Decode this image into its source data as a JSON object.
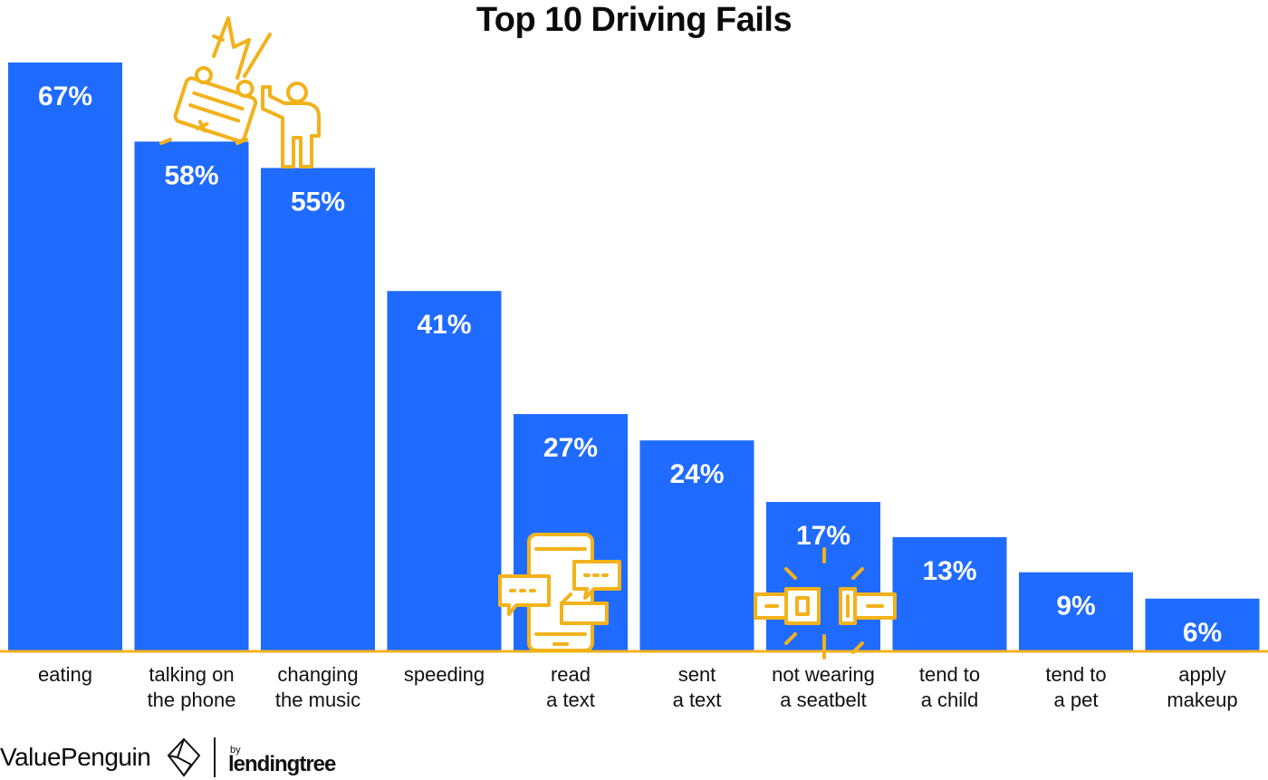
{
  "chart_data": {
    "type": "bar",
    "title": "Top 10 Driving Fails",
    "xlabel": "",
    "ylabel": "",
    "ylim": [
      0,
      67
    ],
    "grid": false,
    "legend": "none",
    "categories": [
      [
        "eating"
      ],
      [
        "talking on",
        "the phone"
      ],
      [
        "changing",
        "the music"
      ],
      [
        "speeding"
      ],
      [
        "read",
        "a text"
      ],
      [
        "sent",
        "a text"
      ],
      [
        "not wearing",
        "a seatbelt"
      ],
      [
        "tend to",
        "a child"
      ],
      [
        "tend to",
        "a pet"
      ],
      [
        "apply",
        "makeup"
      ]
    ],
    "values": [
      67,
      58,
      55,
      41,
      27,
      24,
      17,
      13,
      9,
      6
    ],
    "value_labels": [
      "67%",
      "58%",
      "55%",
      "41%",
      "27%",
      "24%",
      "17%",
      "13%",
      "9%",
      "6%"
    ],
    "bar_color": "#1f6bff",
    "axis_color": "#f2b21b",
    "icons": [
      "car-crash-icon",
      "smartphone-messages-icon",
      "seatbelt-icon"
    ]
  },
  "footer": {
    "brand": "ValuePenguin",
    "by": "by",
    "partner": "lendingtree"
  }
}
